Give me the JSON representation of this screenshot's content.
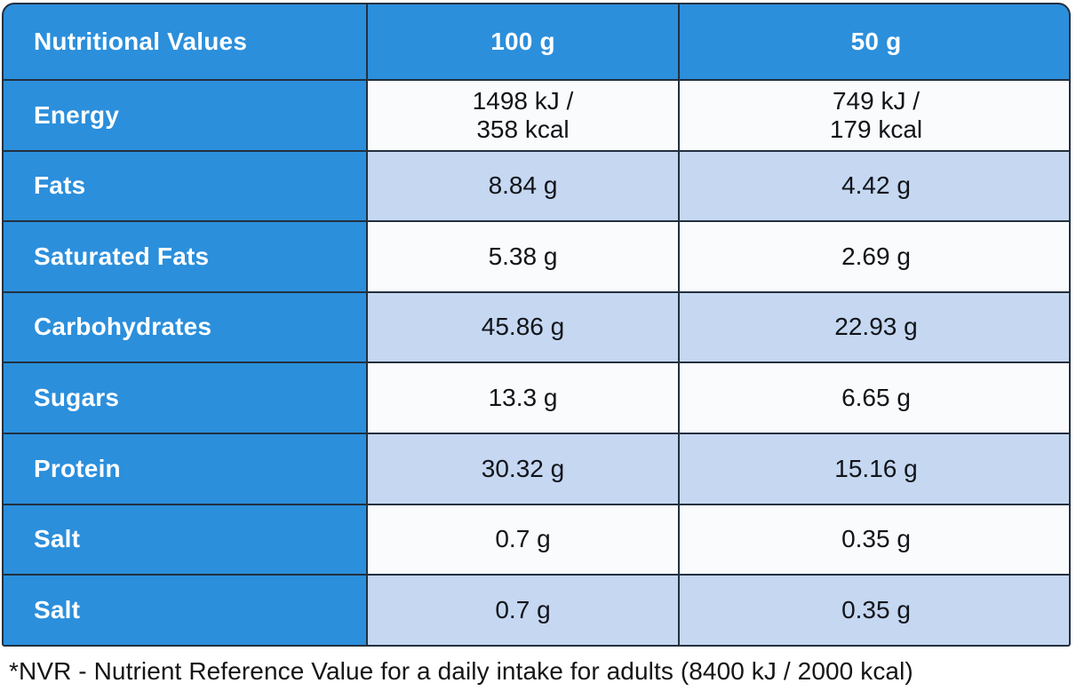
{
  "table": {
    "header": {
      "name_label": "Nutritional Values",
      "col_100g": "100 g",
      "col_50g": "50 g"
    },
    "rows": [
      {
        "label": "Energy",
        "v100": "1498 kJ /\n358 kcal",
        "v50": "749 kJ /\n179 kcal",
        "shaded": false
      },
      {
        "label": "Fats",
        "v100": "8.84 g",
        "v50": "4.42 g",
        "shaded": true
      },
      {
        "label": "Saturated Fats",
        "v100": "5.38 g",
        "v50": "2.69 g",
        "shaded": false
      },
      {
        "label": "Carbohydrates",
        "v100": "45.86 g",
        "v50": "22.93 g",
        "shaded": true
      },
      {
        "label": "Sugars",
        "v100": "13.3 g",
        "v50": "6.65 g",
        "shaded": false
      },
      {
        "label": "Protein",
        "v100": "30.32 g",
        "v50": "15.16 g",
        "shaded": true
      },
      {
        "label": "Salt",
        "v100": "0.7 g",
        "v50": "0.35 g",
        "shaded": false
      },
      {
        "label": "Salt",
        "v100": "0.7 g",
        "v50": "0.35 g",
        "shaded": true
      }
    ]
  },
  "footnote": "*NVR - Nutrient Reference Value for a daily intake for adults (8400 kJ / 2000 kcal)",
  "colors": {
    "accent_blue": "#2B8FDC",
    "row_shaded": "#C5D7F1",
    "row_plain": "#FAFBFD",
    "grid_line": "#22303f",
    "text_dark": "#111418",
    "text_light": "#ffffff"
  }
}
